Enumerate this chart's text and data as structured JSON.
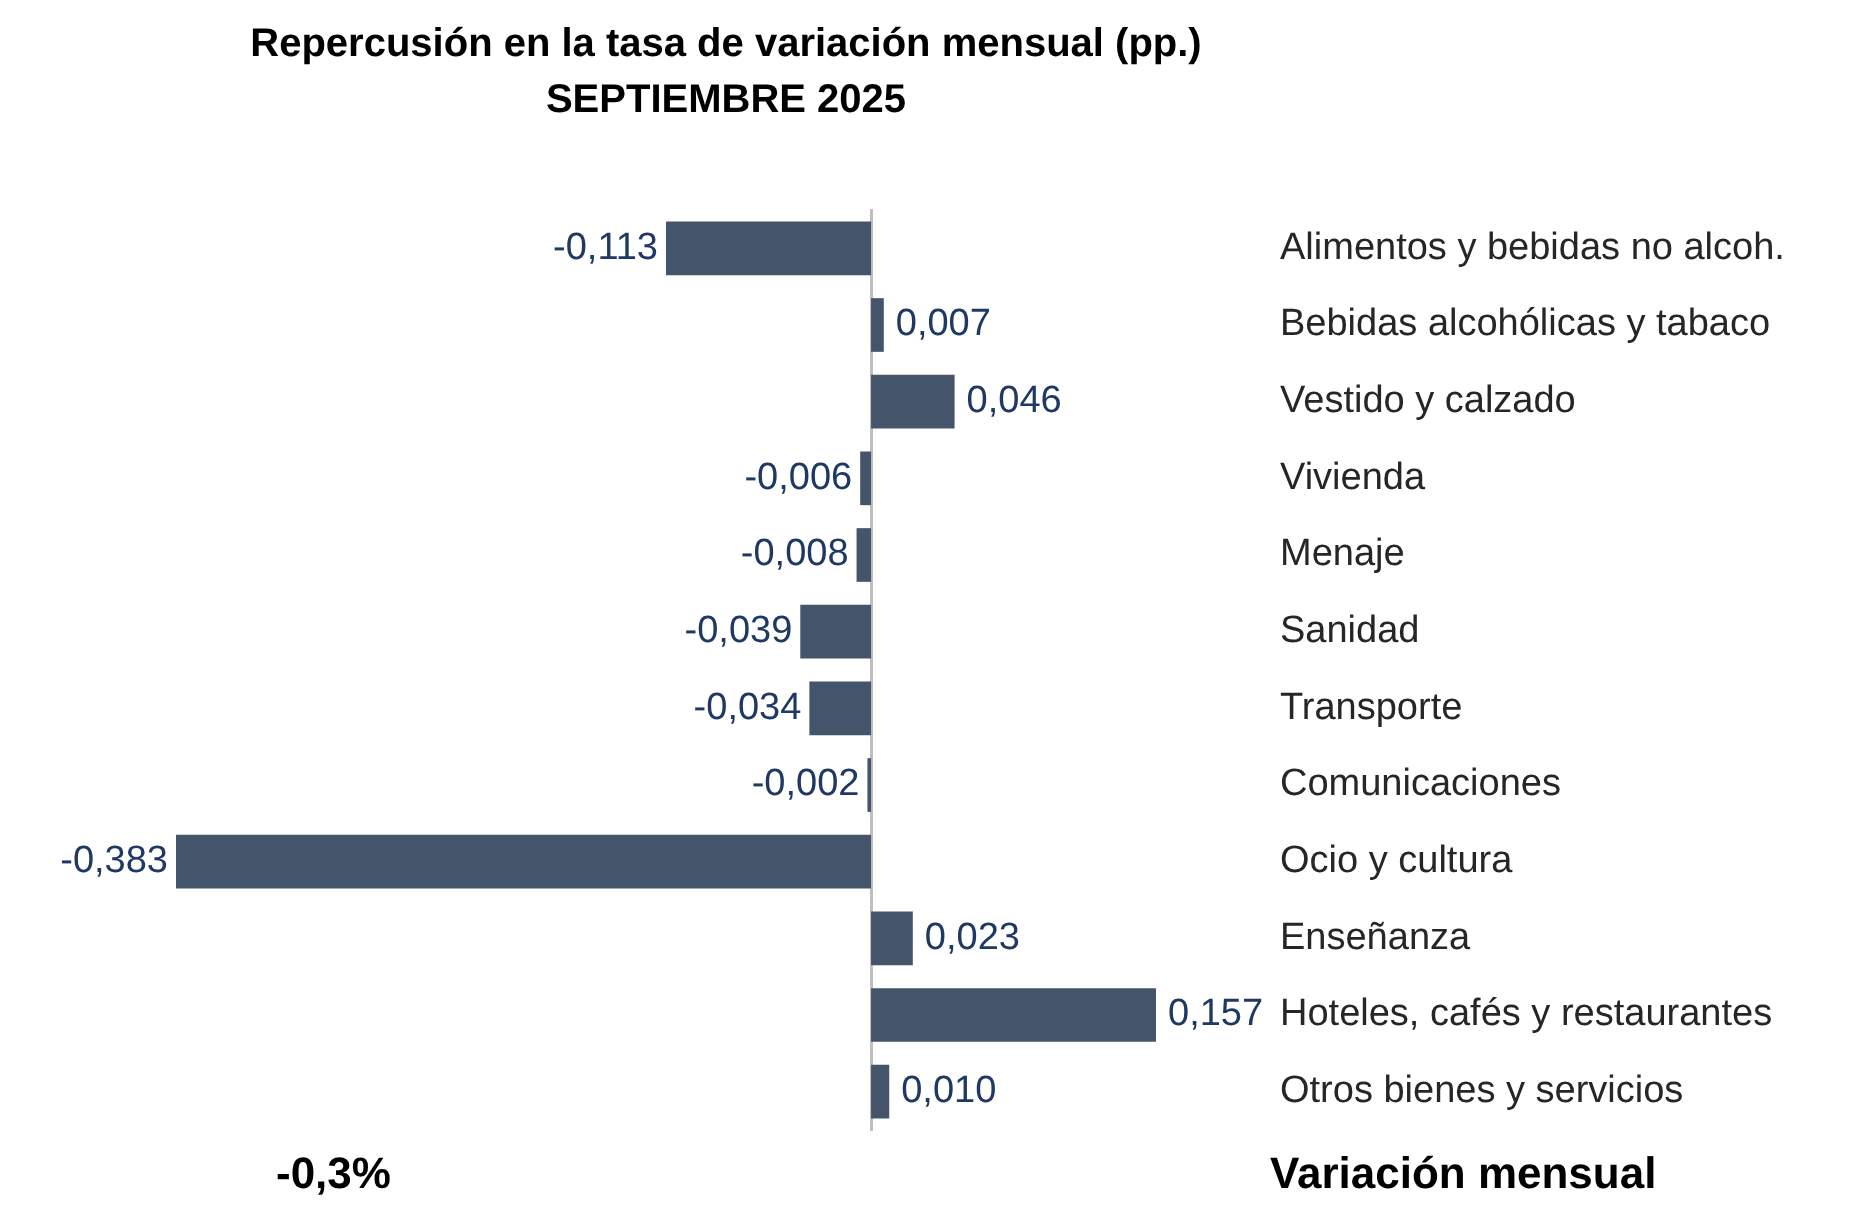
{
  "chart_data": {
    "type": "bar",
    "orientation": "horizontal",
    "title": "Repercusión en la tasa de variación mensual (pp.)",
    "subtitle": "SEPTIEMBRE 2025",
    "categories": [
      "Alimentos y bebidas no alcoh.",
      "Bebidas alcohólicas y tabaco",
      "Vestido y calzado",
      "Vivienda",
      "Menaje",
      "Sanidad",
      "Transporte",
      "Comunicaciones",
      "Ocio y cultura",
      "Enseñanza",
      "Hoteles, cafés y restaurantes",
      "Otros bienes y servicios"
    ],
    "values": [
      -0.113,
      0.007,
      0.046,
      -0.006,
      -0.008,
      -0.039,
      -0.034,
      -0.002,
      -0.383,
      0.023,
      0.157,
      0.01
    ],
    "value_labels": [
      "-0,113",
      "0,007",
      "0,046",
      "-0,006",
      "-0,008",
      "-0,039",
      "-0,034",
      "-0,002",
      "-0,383",
      "0,023",
      "0,157",
      "0,010"
    ],
    "color": "#44546a",
    "annotations": [
      "-0,3%",
      "Variación mensual"
    ]
  }
}
